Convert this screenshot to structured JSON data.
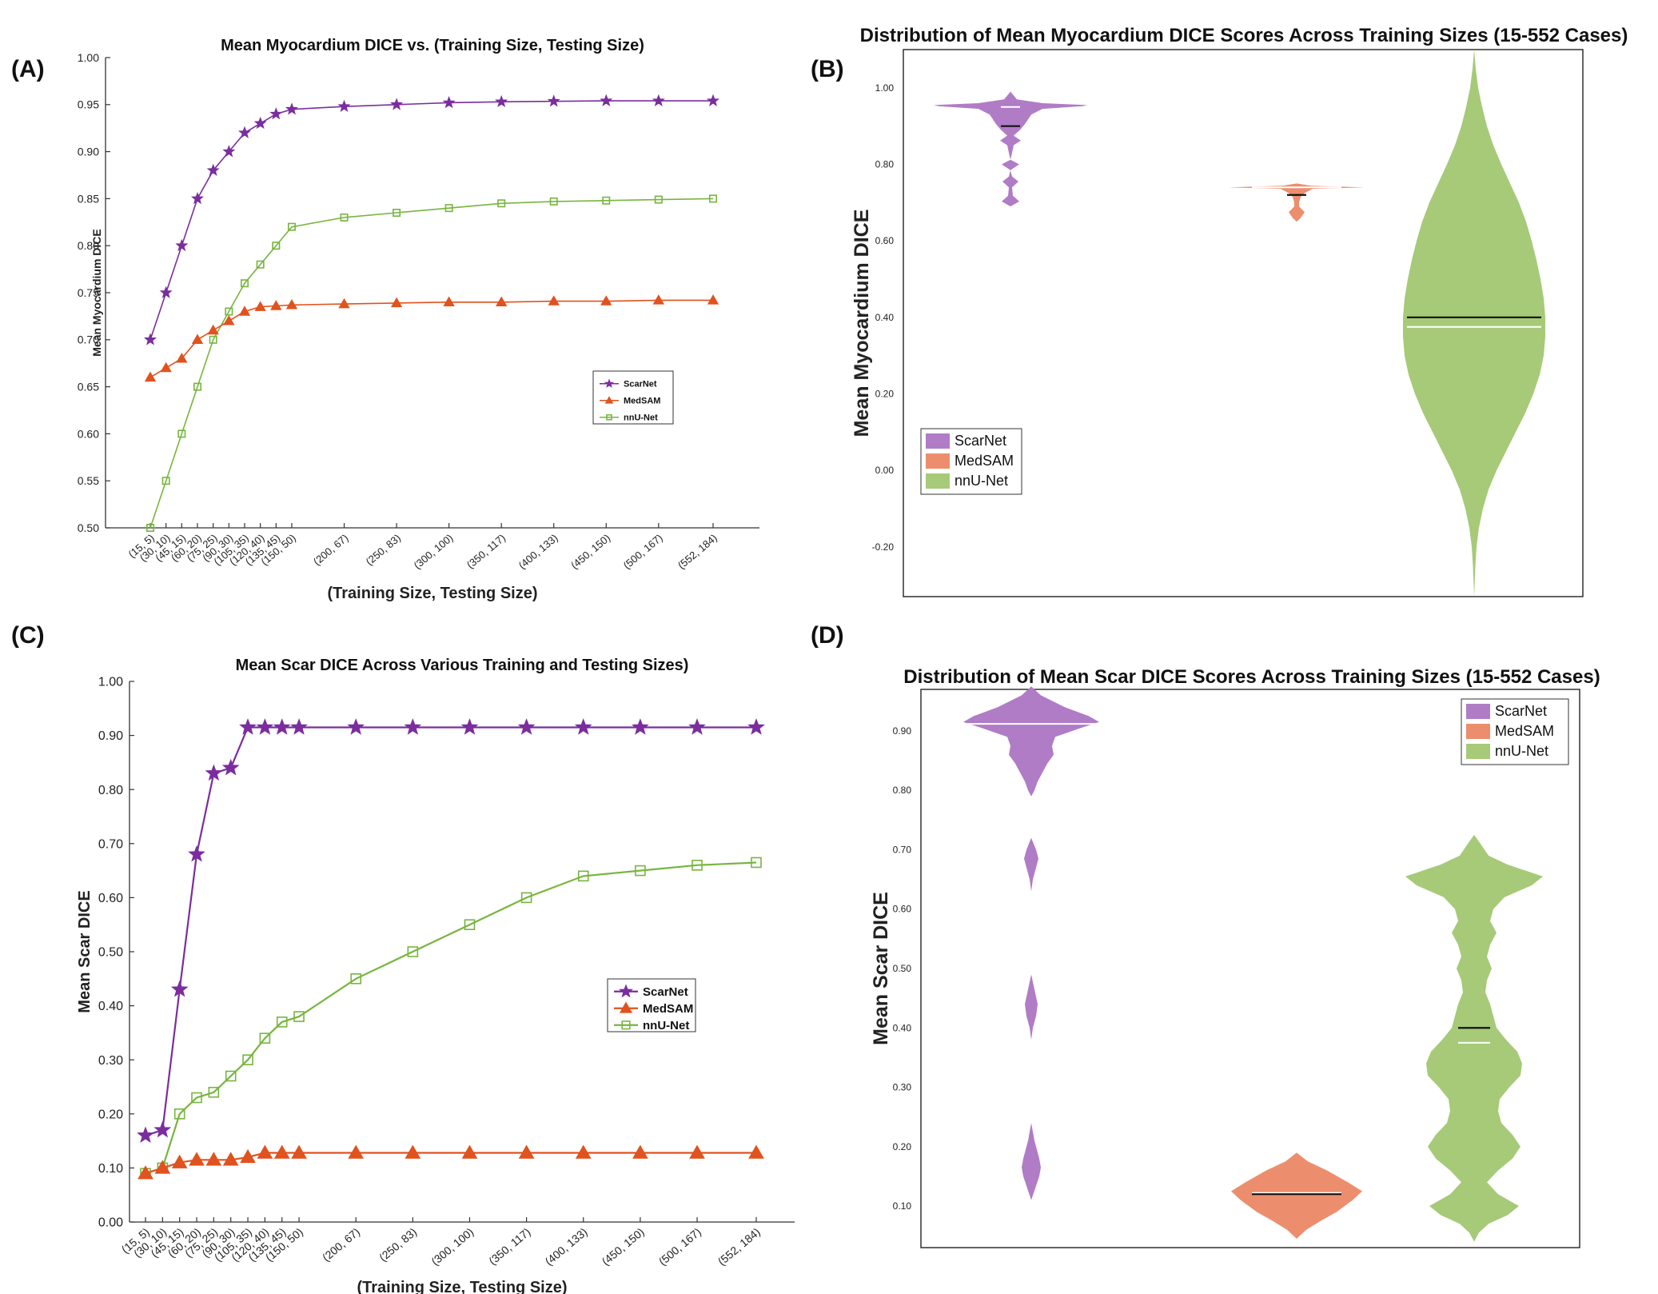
{
  "panels": {
    "a": {
      "letter": "(A)"
    },
    "b": {
      "letter": "(B)"
    },
    "c": {
      "letter": "(C)"
    },
    "d": {
      "letter": "(D)"
    }
  },
  "colors": {
    "scarnet": "#7b2d9e",
    "medsam": "#e0521e",
    "nnunet": "#77b53e",
    "scarnet_violin": "#b07cc6",
    "medsam_violin": "#ec8e6e",
    "nnunet_violin": "#a6ca78"
  },
  "chart_data": [
    {
      "id": "A",
      "type": "line",
      "title": "Mean Myocardium DICE vs. (Training Size, Testing Size)",
      "xlabel": "(Training Size, Testing Size)",
      "ylabel": "Mean Myocardium DICE",
      "categories": [
        "(15, 5)",
        "(30, 10)",
        "(45, 15)",
        "(60, 20)",
        "(75, 25)",
        "(90, 30)",
        "(105, 35)",
        "(120, 40)",
        "(135, 45)",
        "(150, 50)",
        "(200, 67)",
        "(250, 83)",
        "(300, 100)",
        "(350, 117)",
        "(400, 133)",
        "(450, 150)",
        "(500, 167)",
        "(552, 184)"
      ],
      "x": [
        15,
        30,
        45,
        60,
        75,
        90,
        105,
        120,
        135,
        150,
        200,
        250,
        300,
        350,
        400,
        450,
        500,
        552
      ],
      "ylim": [
        0.5,
        1.0
      ],
      "yticks": [
        "0.50",
        "0.55",
        "0.60",
        "0.65",
        "0.70",
        "0.75",
        "0.80",
        "0.85",
        "0.90",
        "0.95",
        "1.00"
      ],
      "legend": "center-right",
      "series": [
        {
          "name": "ScarNet",
          "marker": "star",
          "values": [
            0.7,
            0.75,
            0.8,
            0.85,
            0.88,
            0.9,
            0.92,
            0.93,
            0.94,
            0.945,
            0.948,
            0.95,
            0.952,
            0.953,
            0.9535,
            0.954,
            0.954,
            0.954
          ]
        },
        {
          "name": "MedSAM",
          "marker": "triangle",
          "values": [
            0.66,
            0.67,
            0.68,
            0.7,
            0.71,
            0.72,
            0.73,
            0.735,
            0.736,
            0.737,
            0.738,
            0.739,
            0.74,
            0.74,
            0.741,
            0.741,
            0.742,
            0.742
          ]
        },
        {
          "name": "nnU-Net",
          "marker": "square",
          "values": [
            0.5,
            0.55,
            0.6,
            0.65,
            0.7,
            0.73,
            0.76,
            0.78,
            0.8,
            0.82,
            0.83,
            0.835,
            0.84,
            0.845,
            0.847,
            0.848,
            0.849,
            0.85
          ]
        }
      ]
    },
    {
      "id": "B",
      "type": "violin",
      "title": "Distribution of Mean Myocardium DICE Scores Across Training Sizes (15-552 Cases)",
      "ylabel": "Mean Myocardium DICE",
      "ylim": [
        -0.33,
        1.1
      ],
      "yticks": [
        "1.00",
        "0.80",
        "0.60",
        "0.40",
        "0.20",
        "0.00",
        "-0.20"
      ],
      "legend": "bottom-left",
      "series": [
        {
          "name": "ScarNet",
          "mean": 0.9,
          "median": 0.95
        },
        {
          "name": "MedSAM",
          "mean": 0.72,
          "median": 0.74
        },
        {
          "name": "nnU-Net",
          "mean": 0.4,
          "median": 0.375
        }
      ]
    },
    {
      "id": "C",
      "type": "line",
      "title": "Mean Scar DICE Across Various Training and Testing Sizes)",
      "xlabel": "(Training Size, Testing Size)",
      "ylabel": "Mean Scar DICE",
      "categories": [
        "(15, 5)",
        "(30, 10)",
        "(45, 15)",
        "(60, 20)",
        "(75, 25)",
        "(90, 30)",
        "(105, 35)",
        "(120, 40)",
        "(135, 45)",
        "(150, 50)",
        "(200, 67)",
        "(250, 83)",
        "(300, 100)",
        "(350, 117)",
        "(400, 133)",
        "(450, 150)",
        "(500, 167)",
        "(552, 184)"
      ],
      "x": [
        15,
        30,
        45,
        60,
        75,
        90,
        105,
        120,
        135,
        150,
        200,
        250,
        300,
        350,
        400,
        450,
        500,
        552
      ],
      "ylim": [
        0.0,
        1.0
      ],
      "yticks": [
        "0.00",
        "0.10",
        "0.20",
        "0.30",
        "0.40",
        "0.50",
        "0.60",
        "0.70",
        "0.80",
        "0.90",
        "1.00"
      ],
      "legend": "center-right",
      "series": [
        {
          "name": "ScarNet",
          "marker": "star",
          "values": [
            0.16,
            0.17,
            0.43,
            0.68,
            0.83,
            0.84,
            0.915,
            0.915,
            0.915,
            0.915,
            0.915,
            0.915,
            0.915,
            0.915,
            0.915,
            0.915,
            0.915,
            0.915
          ]
        },
        {
          "name": "MedSAM",
          "marker": "triangle",
          "values": [
            0.09,
            0.1,
            0.11,
            0.115,
            0.115,
            0.115,
            0.12,
            0.128,
            0.128,
            0.128,
            0.128,
            0.128,
            0.128,
            0.128,
            0.128,
            0.128,
            0.128,
            0.128
          ]
        },
        {
          "name": "nnU-Net",
          "marker": "square",
          "values": [
            0.09,
            0.1,
            0.2,
            0.23,
            0.24,
            0.27,
            0.3,
            0.34,
            0.37,
            0.38,
            0.45,
            0.5,
            0.55,
            0.6,
            0.64,
            0.65,
            0.66,
            0.665
          ]
        }
      ]
    },
    {
      "id": "D",
      "type": "violin",
      "title": "Distribution of Mean Scar DICE Scores Across Training Sizes (15-552 Cases)",
      "ylabel": "Mean Scar DICE",
      "ylim": [
        0.03,
        0.97
      ],
      "yticks": [
        "0.90",
        "0.80",
        "0.70",
        "0.60",
        "0.50",
        "0.40",
        "0.30",
        "0.20",
        "0.10"
      ],
      "legend": "top-right",
      "series": [
        {
          "name": "ScarNet",
          "mean": 0.91,
          "median": 0.912
        },
        {
          "name": "MedSAM",
          "mean": 0.12,
          "median": 0.122
        },
        {
          "name": "nnU-Net",
          "mean": 0.4,
          "median": 0.375
        }
      ]
    }
  ]
}
